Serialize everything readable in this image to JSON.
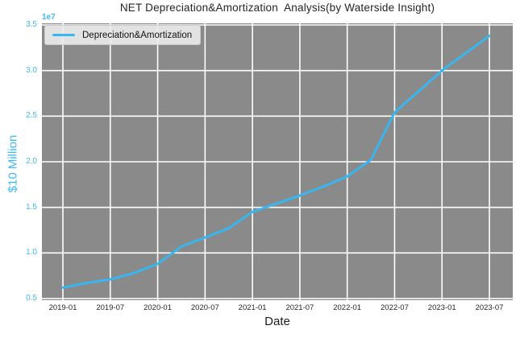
{
  "header": {
    "title": "NET Depreciation&Amortization  Analysis(by Waterside Insight)"
  },
  "legend": {
    "label": "Depreciation&Amortization"
  },
  "colors": {
    "accent_cyan": "#3cb9f0",
    "line": "#38b6f0",
    "plot_background": "#8a8a8a",
    "gridline": "#ffffff",
    "dark_text": "#242424"
  },
  "chart_data": {
    "type": "line",
    "title": "NET Depreciation&Amortization  Analysis(by Waterside Insight)",
    "xlabel": "Date",
    "ylabel": "$10 Million",
    "offset_text": "1e7",
    "grid": true,
    "legend_position": "upper-left",
    "ylim_1e7": [
      0.5,
      3.5
    ],
    "y_ticks": [
      {
        "label": "0.5",
        "value": 0.5
      },
      {
        "label": "1.0",
        "value": 1.0
      },
      {
        "label": "1.5",
        "value": 1.5
      },
      {
        "label": "2.0",
        "value": 2.0
      },
      {
        "label": "2.5",
        "value": 2.5
      },
      {
        "label": "3.0",
        "value": 3.0
      },
      {
        "label": "3.5",
        "value": 3.5
      }
    ],
    "x_ticks": [
      {
        "label": "2019-01",
        "month": 0
      },
      {
        "label": "2019-07",
        "month": 6
      },
      {
        "label": "2020-01",
        "month": 12
      },
      {
        "label": "2020-07",
        "month": 18
      },
      {
        "label": "2021-01",
        "month": 24
      },
      {
        "label": "2021-07",
        "month": 30
      },
      {
        "label": "2022-01",
        "month": 36
      },
      {
        "label": "2022-07",
        "month": 42
      },
      {
        "label": "2023-01",
        "month": 48
      },
      {
        "label": "2023-07",
        "month": 54
      }
    ],
    "series": [
      {
        "name": "Depreciation&Amortization",
        "color": "#38b6f0",
        "x_months": [
          0,
          3,
          6,
          9,
          12,
          15,
          18,
          21,
          24,
          27,
          30,
          33,
          36,
          39,
          42,
          45,
          48,
          51,
          54
        ],
        "x_labels": [
          "2019-01",
          "2019-04",
          "2019-07",
          "2019-10",
          "2020-01",
          "2020-04",
          "2020-07",
          "2020-10",
          "2021-01",
          "2021-04",
          "2021-07",
          "2021-10",
          "2022-01",
          "2022-04",
          "2022-07",
          "2022-10",
          "2023-01",
          "2023-04",
          "2023-07"
        ],
        "values": [
          6200000,
          6700000,
          7100000,
          7800000,
          8800000,
          10700000,
          11700000,
          12700000,
          14500000,
          15400000,
          16300000,
          17300000,
          18400000,
          20200000,
          25400000,
          27700000,
          30000000,
          31900000,
          33800000
        ]
      }
    ]
  }
}
